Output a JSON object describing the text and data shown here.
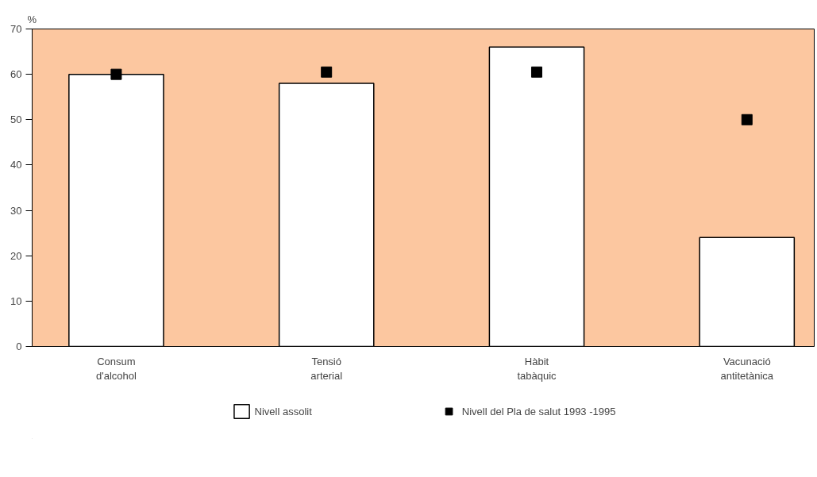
{
  "chart_data": {
    "type": "bar",
    "ylabel": "%",
    "categories": [
      "Consum\nd'alcohol",
      "Tensió\narterial",
      "Hàbit\ntabàquic",
      "Vacunació\nantitetànica"
    ],
    "series": [
      {
        "name": "Nivell assolit",
        "color": "#ffffff",
        "values": [
          60,
          58,
          66,
          24
        ]
      },
      {
        "name": "Nivell del Pla de salut 1993 -1995",
        "type": "scatter",
        "color": "#000000",
        "marker": "square",
        "values": [
          60,
          60.5,
          60.5,
          50
        ]
      }
    ],
    "ylim": [
      0,
      70
    ],
    "yticks": [
      0,
      10,
      20,
      30,
      40,
      50,
      60,
      70
    ],
    "grid": false,
    "legend": "bottom"
  }
}
